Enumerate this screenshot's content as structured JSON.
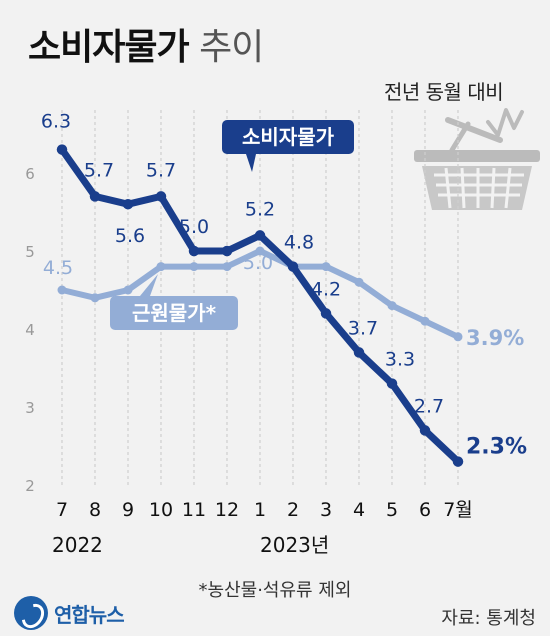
{
  "header": {
    "title_bold": "소비자물가",
    "title_light": "추이",
    "subtitle": "전년 동월 대비"
  },
  "footer": {
    "footnote": "*농산물·석유류 제외",
    "logo": "연합뉴스",
    "source": "자료: 통계청"
  },
  "icons": {
    "basket": "shopping-basket-icon",
    "logo": "yonhap-logo-icon"
  },
  "colors": {
    "cpi": "#1a3e8c",
    "core": "#93add6",
    "background": "#f2f2f2"
  },
  "chart_data": {
    "type": "line",
    "categories": [
      "7",
      "8",
      "9",
      "10",
      "11",
      "12",
      "1",
      "2",
      "3",
      "4",
      "5",
      "6",
      "7월"
    ],
    "year_labels": [
      {
        "at_index": 0,
        "text": "2022"
      },
      {
        "at_index": 6,
        "text": "2023년"
      }
    ],
    "yticks": [
      "2",
      "3",
      "4",
      "5",
      "6"
    ],
    "ylim": [
      2,
      6.7
    ],
    "grid": "vertical-dashed",
    "series": [
      {
        "name": "소비자물가",
        "values": [
          6.3,
          5.7,
          5.6,
          5.7,
          5.0,
          5.0,
          5.2,
          4.8,
          4.2,
          3.7,
          3.3,
          2.7,
          2.3
        ],
        "labels": [
          "6.3",
          "5.7",
          "5.6",
          "5.7",
          "5.0",
          "",
          "5.2",
          "4.8",
          "4.2",
          "3.7",
          "3.3",
          "2.7",
          "2.3%"
        ]
      },
      {
        "name": "근원물가*",
        "values": [
          4.5,
          4.4,
          4.5,
          4.8,
          4.8,
          4.8,
          5.0,
          4.8,
          4.8,
          4.6,
          4.3,
          4.1,
          3.9
        ],
        "labels": [
          "4.5",
          "",
          "",
          "",
          "",
          "",
          "5.0",
          "",
          "",
          "",
          "",
          "",
          "3.9%"
        ]
      }
    ]
  }
}
